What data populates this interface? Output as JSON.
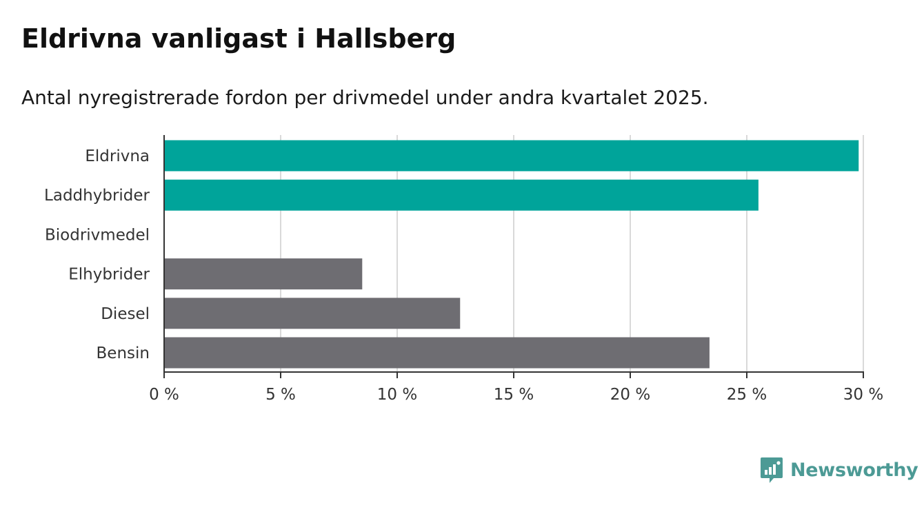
{
  "header": {
    "title": "Eldrivna vanligast i Hallsberg",
    "subtitle": "Antal nyregistrerade fordon per drivmedel under andra kvartalet 2025."
  },
  "brand": {
    "logo_text": "Newsworthy",
    "icon": "bar-chart-speech-bubble-icon",
    "color": "#4c9a95"
  },
  "colors": {
    "highlight": "#00a49a",
    "other": "#6e6d72",
    "grid": "#d9d9d9",
    "axis": "#333333"
  },
  "chart_data": {
    "type": "bar",
    "orientation": "horizontal",
    "categories": [
      "Eldrivna",
      "Laddhybrider",
      "Biodrivmedel",
      "Elhybrider",
      "Diesel",
      "Bensin"
    ],
    "values": [
      29.8,
      25.5,
      0,
      8.5,
      12.7,
      23.4
    ],
    "highlighted": [
      true,
      true,
      true,
      false,
      false,
      false
    ],
    "unit": "%",
    "xlim": [
      0,
      30
    ],
    "xticks": [
      0,
      5,
      10,
      15,
      20,
      25,
      30
    ],
    "xtick_labels": [
      "0 %",
      "5 %",
      "10 %",
      "15 %",
      "20 %",
      "25 %",
      "30 %"
    ],
    "grid": true,
    "legend": "none",
    "title": "Eldrivna vanligast i Hallsberg",
    "subtitle": "Antal nyregistrerade fordon per drivmedel under andra kvartalet 2025.",
    "xlabel": "",
    "ylabel": ""
  }
}
